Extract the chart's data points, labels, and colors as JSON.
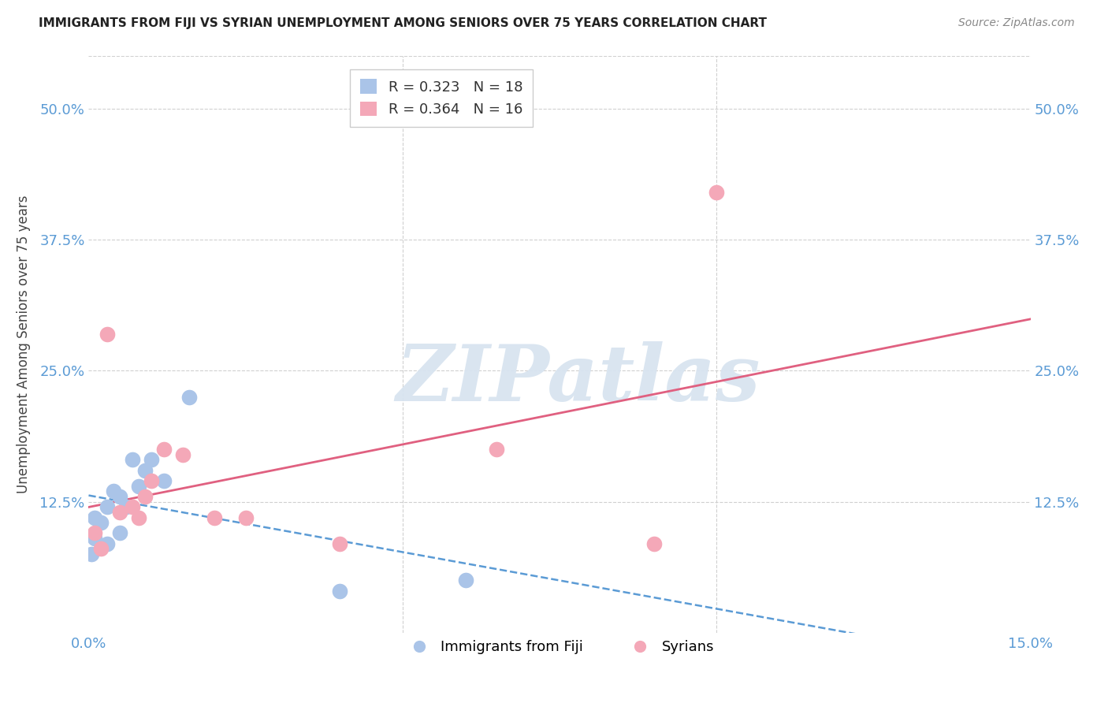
{
  "title": "IMMIGRANTS FROM FIJI VS SYRIAN UNEMPLOYMENT AMONG SENIORS OVER 75 YEARS CORRELATION CHART",
  "source": "Source: ZipAtlas.com",
  "ylabel": "Unemployment Among Seniors over 75 years",
  "xlim": [
    0.0,
    0.15
  ],
  "ylim": [
    0.0,
    0.55
  ],
  "xtick_positions": [
    0.0,
    0.05,
    0.1,
    0.15
  ],
  "xtick_labels": [
    "0.0%",
    "",
    "",
    "15.0%"
  ],
  "ytick_positions": [
    0.125,
    0.25,
    0.375,
    0.5
  ],
  "ytick_labels": [
    "12.5%",
    "25.0%",
    "37.5%",
    "50.0%"
  ],
  "fiji_R": 0.323,
  "fiji_N": 18,
  "syrian_R": 0.364,
  "syrian_N": 16,
  "fiji_scatter_color": "#aac4e8",
  "fiji_line_color": "#5b9bd5",
  "syrian_scatter_color": "#f4a8b8",
  "syrian_line_color": "#e06080",
  "fiji_x": [
    0.0005,
    0.001,
    0.001,
    0.002,
    0.003,
    0.003,
    0.004,
    0.005,
    0.005,
    0.006,
    0.007,
    0.008,
    0.009,
    0.01,
    0.012,
    0.016,
    0.04,
    0.06
  ],
  "fiji_y": [
    0.075,
    0.09,
    0.11,
    0.105,
    0.085,
    0.12,
    0.135,
    0.095,
    0.13,
    0.12,
    0.165,
    0.14,
    0.155,
    0.165,
    0.145,
    0.225,
    0.04,
    0.05
  ],
  "syrian_x": [
    0.001,
    0.002,
    0.003,
    0.005,
    0.007,
    0.008,
    0.009,
    0.01,
    0.012,
    0.015,
    0.02,
    0.025,
    0.04,
    0.065,
    0.09,
    0.1
  ],
  "syrian_y": [
    0.095,
    0.08,
    0.285,
    0.115,
    0.12,
    0.11,
    0.13,
    0.145,
    0.175,
    0.17,
    0.11,
    0.11,
    0.085,
    0.175,
    0.085,
    0.42
  ],
  "watermark_text": "ZIPatlas",
  "watermark_color": "#d8e4f0",
  "background_color": "#ffffff",
  "grid_color": "#d0d0d0",
  "title_fontsize": 11,
  "source_fontsize": 10,
  "tick_fontsize": 13,
  "ylabel_fontsize": 12,
  "legend_fontsize": 13
}
